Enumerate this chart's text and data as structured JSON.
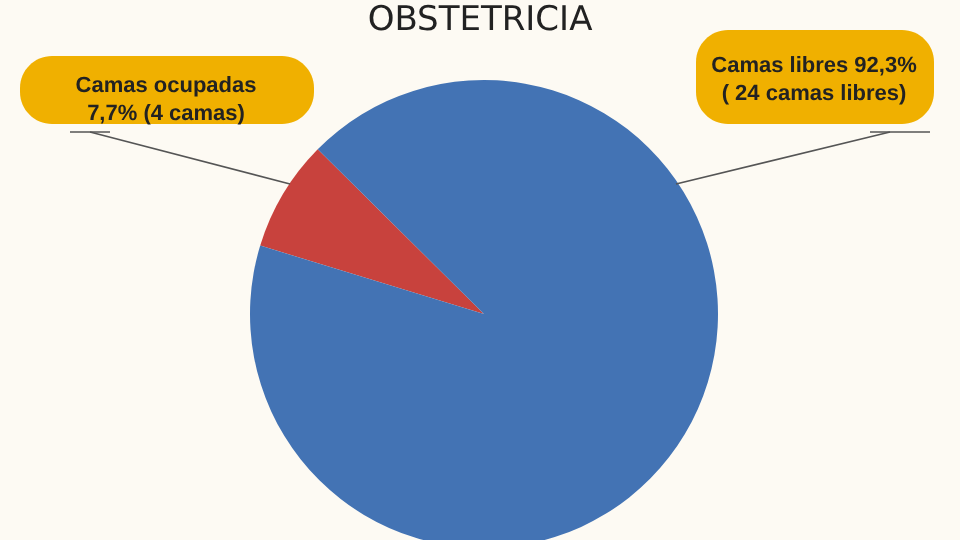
{
  "chart_data": {
    "type": "pie",
    "title": "OBSTETRICIA",
    "categories": [
      "Camas ocupadas\n7,7% (4 camas)",
      "Camas libres 92,3%\n( 24 camas libres)"
    ],
    "values": [
      7.7,
      92.3
    ],
    "colors": [
      "#c8423d",
      "#4373b4"
    ]
  }
}
